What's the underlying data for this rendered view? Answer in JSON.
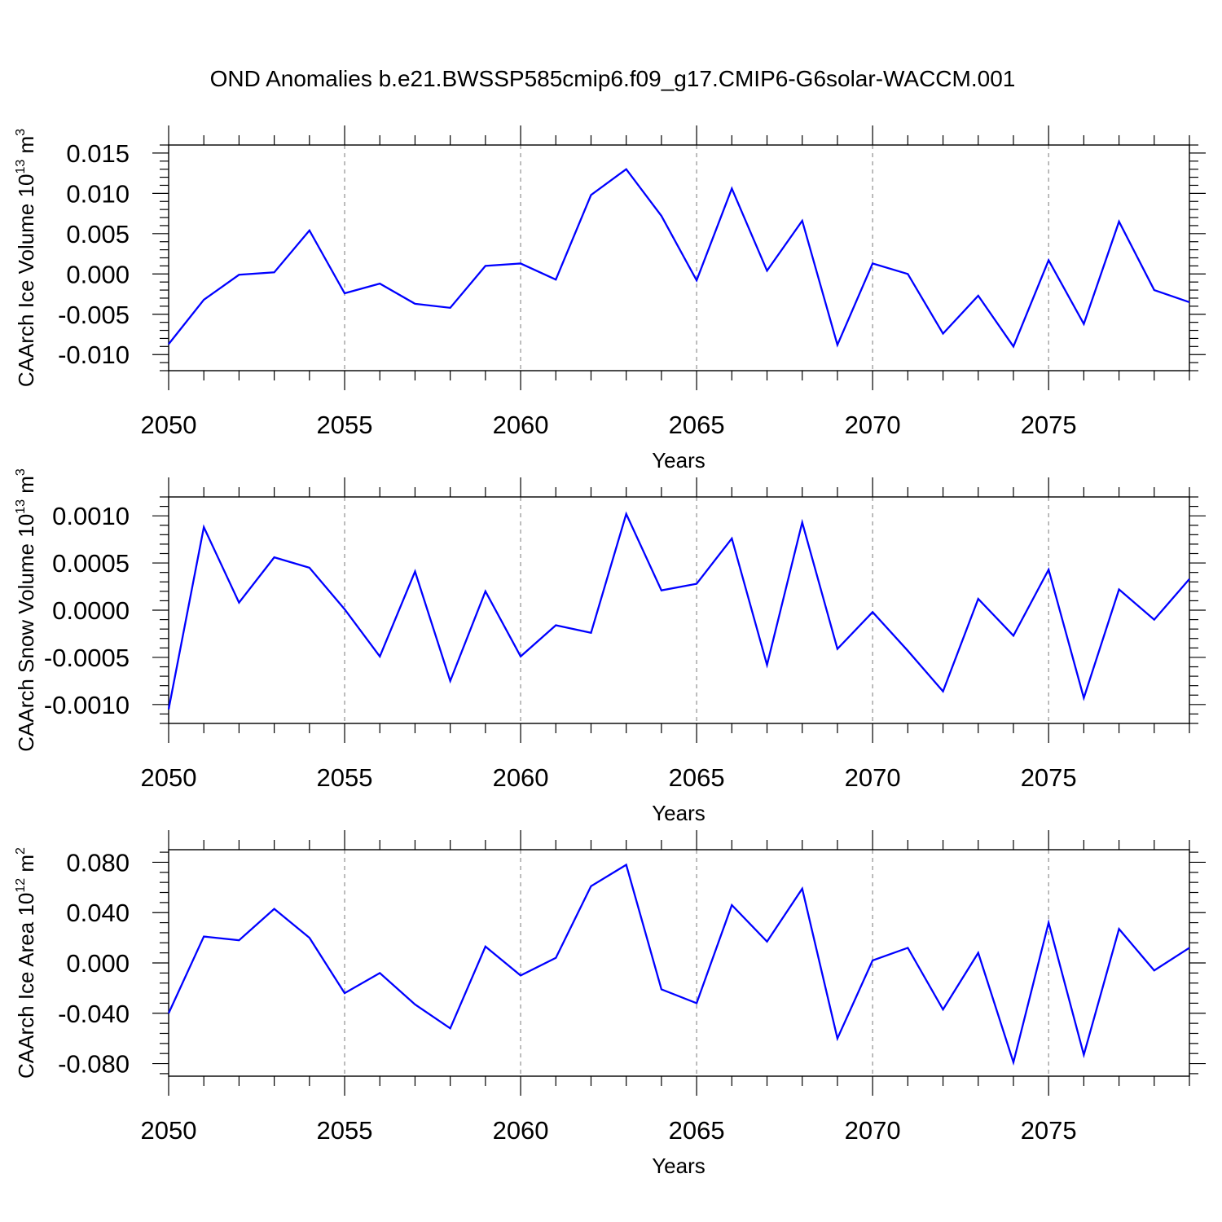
{
  "figure": {
    "title": "OND Anomalies b.e21.BWSSP585cmip6.f09_g17.CMIP6-G6solar-WACCM.001",
    "line_color": "#0000ff"
  },
  "chart_data": [
    {
      "type": "line",
      "title": "",
      "xlabel": "Years",
      "ylabel": "CAArch Ice Volume 10",
      "ylabel_exp": "13",
      "ylabel_unit": "m",
      "ylabel_unit_exp": "3",
      "xlim": [
        2050,
        2079
      ],
      "ylim": [
        -0.012,
        0.016
      ],
      "yticks": [
        -0.01,
        -0.005,
        0.0,
        0.005,
        0.01,
        0.015
      ],
      "ytick_labels": [
        "-0.010",
        "-0.005",
        "0.000",
        "0.005",
        "0.010",
        "0.015"
      ],
      "xticks": [
        2050,
        2055,
        2060,
        2065,
        2070,
        2075
      ],
      "xtick_labels": [
        "2050",
        "2055",
        "2060",
        "2065",
        "2070",
        "2075"
      ],
      "grid": "dashed vertical lines at 2055, 2060, 2065, 2070, 2075",
      "x": [
        2050,
        2051,
        2052,
        2053,
        2054,
        2055,
        2056,
        2057,
        2058,
        2059,
        2060,
        2061,
        2062,
        2063,
        2064,
        2065,
        2066,
        2067,
        2068,
        2069,
        2070,
        2071,
        2072,
        2073,
        2074,
        2075,
        2076,
        2077,
        2078,
        2079
      ],
      "values": [
        -0.0087,
        -0.0032,
        -0.0001,
        0.0002,
        0.0054,
        -0.0024,
        -0.0012,
        -0.0037,
        -0.0042,
        0.001,
        0.0013,
        -0.0007,
        0.0098,
        0.013,
        0.0072,
        -0.0008,
        0.0106,
        0.0004,
        0.0066,
        -0.0088,
        0.0013,
        0.0,
        -0.0074,
        -0.0027,
        -0.009,
        0.0017,
        -0.0062,
        0.0065,
        -0.002,
        -0.0035
      ]
    },
    {
      "type": "line",
      "title": "",
      "xlabel": "Years",
      "ylabel": "CAArch Snow Volume 10",
      "ylabel_exp": "13",
      "ylabel_unit": "m",
      "ylabel_unit_exp": "3",
      "xlim": [
        2050,
        2079
      ],
      "ylim": [
        -0.0012,
        0.0012
      ],
      "yticks": [
        -0.001,
        -0.0005,
        0.0,
        0.0005,
        0.001
      ],
      "ytick_labels": [
        "-0.0010",
        "-0.0005",
        "0.0000",
        "0.0005",
        "0.0010"
      ],
      "xticks": [
        2050,
        2055,
        2060,
        2065,
        2070,
        2075
      ],
      "xtick_labels": [
        "2050",
        "2055",
        "2060",
        "2065",
        "2070",
        "2075"
      ],
      "grid": "dashed vertical lines at 2055, 2060, 2065, 2070, 2075",
      "x": [
        2050,
        2051,
        2052,
        2053,
        2054,
        2055,
        2056,
        2057,
        2058,
        2059,
        2060,
        2061,
        2062,
        2063,
        2064,
        2065,
        2066,
        2067,
        2068,
        2069,
        2070,
        2071,
        2072,
        2073,
        2074,
        2075,
        2076,
        2077,
        2078,
        2079
      ],
      "values": [
        -0.00105,
        0.00088,
        8e-05,
        0.00056,
        0.00045,
        1e-05,
        -0.00049,
        0.00041,
        -0.00075,
        0.0002,
        -0.00049,
        -0.00016,
        -0.00024,
        0.00102,
        0.00021,
        0.00028,
        0.00076,
        -0.00058,
        0.00093,
        -0.00041,
        -2e-05,
        -0.00043,
        -0.00086,
        0.00012,
        -0.00027,
        0.00043,
        -0.00093,
        0.00022,
        -0.0001,
        0.00033
      ]
    },
    {
      "type": "line",
      "title": "",
      "xlabel": "Years",
      "ylabel": "CAArch Ice Area 10",
      "ylabel_exp": "12",
      "ylabel_unit": "m",
      "ylabel_unit_exp": "2",
      "xlim": [
        2050,
        2079
      ],
      "ylim": [
        -0.09,
        0.09
      ],
      "yticks": [
        -0.08,
        -0.04,
        0.0,
        0.04,
        0.08
      ],
      "ytick_labels": [
        "-0.080",
        "-0.040",
        "0.000",
        "0.040",
        "0.080"
      ],
      "xticks": [
        2050,
        2055,
        2060,
        2065,
        2070,
        2075
      ],
      "xtick_labels": [
        "2050",
        "2055",
        "2060",
        "2065",
        "2070",
        "2075"
      ],
      "grid": "dashed vertical lines at 2055, 2060, 2065, 2070, 2075",
      "x": [
        2050,
        2051,
        2052,
        2053,
        2054,
        2055,
        2056,
        2057,
        2058,
        2059,
        2060,
        2061,
        2062,
        2063,
        2064,
        2065,
        2066,
        2067,
        2068,
        2069,
        2070,
        2071,
        2072,
        2073,
        2074,
        2075,
        2076,
        2077,
        2078,
        2079
      ],
      "values": [
        -0.04,
        0.021,
        0.018,
        0.043,
        0.02,
        -0.024,
        -0.008,
        -0.033,
        -0.052,
        0.013,
        -0.01,
        0.004,
        0.061,
        0.078,
        -0.021,
        -0.032,
        0.046,
        0.017,
        0.059,
        -0.06,
        0.002,
        0.012,
        -0.037,
        0.008,
        -0.079,
        0.032,
        -0.073,
        0.027,
        -0.006,
        0.012
      ]
    }
  ]
}
